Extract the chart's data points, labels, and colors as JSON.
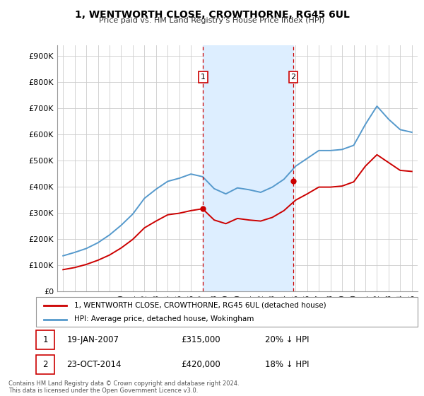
{
  "title": "1, WENTWORTH CLOSE, CROWTHORNE, RG45 6UL",
  "subtitle": "Price paid vs. HM Land Registry’s House Price Index (HPI)",
  "ylabel_ticks": [
    "£0",
    "£100K",
    "£200K",
    "£300K",
    "£400K",
    "£500K",
    "£600K",
    "£700K",
    "£800K",
    "£900K"
  ],
  "ytick_values": [
    0,
    100000,
    200000,
    300000,
    400000,
    500000,
    600000,
    700000,
    800000,
    900000
  ],
  "ylim": [
    0,
    940000
  ],
  "xlim_start": 1994.5,
  "xlim_end": 2025.5,
  "transaction1_x": 2007.05,
  "transaction1_y": 315000,
  "transaction1_label": "1",
  "transaction1_date": "19-JAN-2007",
  "transaction1_price": "£315,000",
  "transaction1_hpi": "20% ↓ HPI",
  "transaction2_x": 2014.8,
  "transaction2_y": 420000,
  "transaction2_label": "2",
  "transaction2_date": "23-OCT-2014",
  "transaction2_price": "£420,000",
  "transaction2_hpi": "18% ↓ HPI",
  "red_color": "#cc0000",
  "blue_color": "#5599cc",
  "shaded_region_color": "#ddeeff",
  "grid_color": "#cccccc",
  "legend_line1": "1, WENTWORTH CLOSE, CROWTHORNE, RG45 6UL (detached house)",
  "legend_line2": "HPI: Average price, detached house, Wokingham",
  "footer": "Contains HM Land Registry data © Crown copyright and database right 2024.\nThis data is licensed under the Open Government Licence v3.0.",
  "hpi_years": [
    1995,
    1996,
    1997,
    1998,
    1999,
    2000,
    2001,
    2002,
    2003,
    2004,
    2005,
    2006,
    2007,
    2008,
    2009,
    2010,
    2011,
    2012,
    2013,
    2014,
    2015,
    2016,
    2017,
    2018,
    2019,
    2020,
    2021,
    2022,
    2023,
    2024,
    2025
  ],
  "hpi_values": [
    135000,
    148000,
    163000,
    185000,
    215000,
    252000,
    295000,
    355000,
    390000,
    420000,
    432000,
    448000,
    438000,
    392000,
    372000,
    395000,
    388000,
    378000,
    398000,
    428000,
    478000,
    508000,
    538000,
    538000,
    542000,
    558000,
    638000,
    708000,
    658000,
    618000,
    608000
  ],
  "price_years": [
    1995,
    1996,
    1997,
    1998,
    1999,
    2000,
    2001,
    2002,
    2003,
    2004,
    2005,
    2006,
    2007,
    2008,
    2009,
    2010,
    2011,
    2012,
    2013,
    2014,
    2015,
    2016,
    2017,
    2018,
    2019,
    2020,
    2021,
    2022,
    2023,
    2024,
    2025
  ],
  "price_values": [
    82000,
    90000,
    102000,
    118000,
    138000,
    165000,
    198000,
    242000,
    268000,
    292000,
    298000,
    308000,
    315000,
    272000,
    258000,
    278000,
    272000,
    268000,
    282000,
    308000,
    348000,
    372000,
    398000,
    398000,
    402000,
    418000,
    478000,
    522000,
    492000,
    462000,
    458000
  ]
}
